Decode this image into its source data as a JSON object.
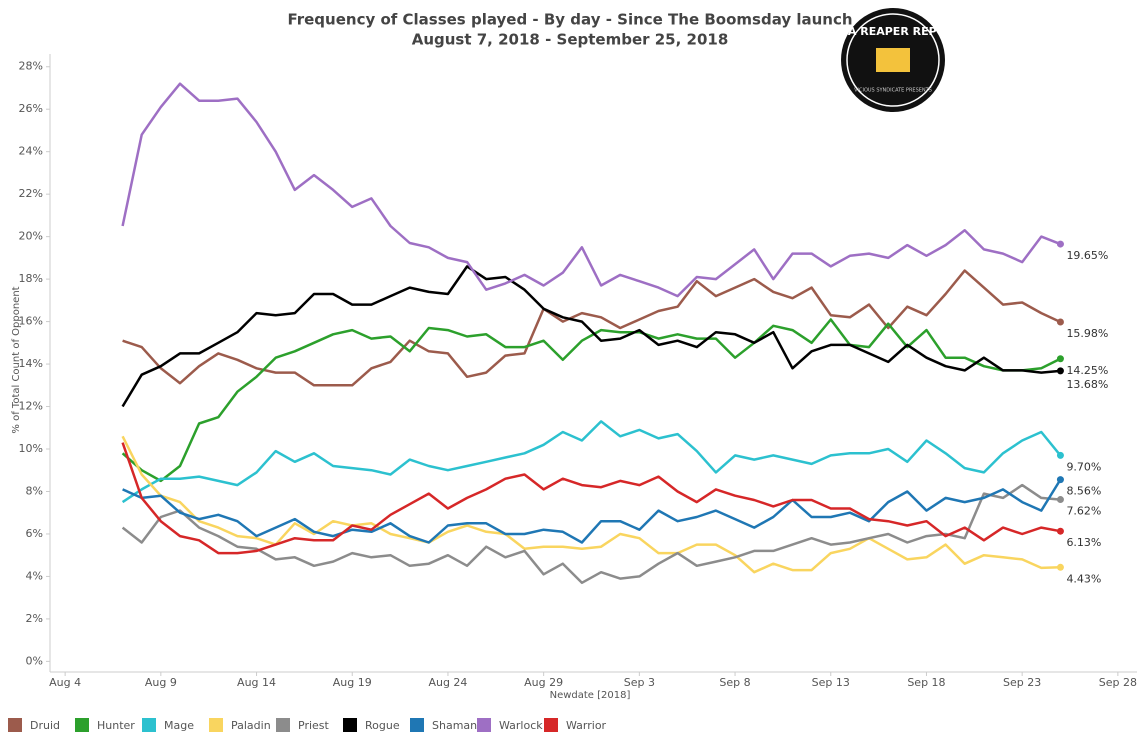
{
  "chart_data": {
    "type": "line",
    "title": "Frequency of Classes played - By day - Since The Boomsday launch",
    "subtitle": "August 7, 2018 - September 25, 2018",
    "logo": "DATA REAPER REPORT",
    "logo_sub": "VICIOUS SYNDICATE PRESENTS",
    "x_label": "Newdate [2018]",
    "y_label": "% of Total Count of Opponent",
    "x": [
      "Aug 7",
      "Aug 8",
      "Aug 9",
      "Aug 10",
      "Aug 11",
      "Aug 12",
      "Aug 13",
      "Aug 14",
      "Aug 15",
      "Aug 16",
      "Aug 17",
      "Aug 18",
      "Aug 19",
      "Aug 20",
      "Aug 21",
      "Aug 22",
      "Aug 23",
      "Aug 24",
      "Aug 25",
      "Aug 26",
      "Aug 27",
      "Aug 28",
      "Aug 29",
      "Aug 30",
      "Aug 31",
      "Sep 1",
      "Sep 2",
      "Sep 3",
      "Sep 4",
      "Sep 5",
      "Sep 6",
      "Sep 7",
      "Sep 8",
      "Sep 9",
      "Sep 10",
      "Sep 11",
      "Sep 12",
      "Sep 13",
      "Sep 14",
      "Sep 15",
      "Sep 16",
      "Sep 17",
      "Sep 18",
      "Sep 19",
      "Sep 20",
      "Sep 21",
      "Sep 22",
      "Sep 23",
      "Sep 24",
      "Sep 25"
    ],
    "xlim": [
      "Aug 3",
      "Sep 29"
    ],
    "xticks": [
      "Aug 4",
      "Aug 9",
      "Aug 14",
      "Aug 19",
      "Aug 24",
      "Aug 29",
      "Sep 3",
      "Sep 8",
      "Sep 13",
      "Sep 18",
      "Sep 23",
      "Sep 28"
    ],
    "ylim": [
      -0.5,
      28.6
    ],
    "yticks": [
      {
        "value": 0,
        "label": "0%"
      },
      {
        "value": 2,
        "label": "2%"
      },
      {
        "value": 4,
        "label": "4%"
      },
      {
        "value": 6,
        "label": "6%"
      },
      {
        "value": 8,
        "label": "8%"
      },
      {
        "value": 10,
        "label": "10%"
      },
      {
        "value": 12,
        "label": "12%"
      },
      {
        "value": 14,
        "label": "14%"
      },
      {
        "value": 16,
        "label": "16%"
      },
      {
        "value": 18,
        "label": "18%"
      },
      {
        "value": 20,
        "label": "20%"
      },
      {
        "value": 22,
        "label": "22%"
      },
      {
        "value": 24,
        "label": "24%"
      },
      {
        "value": 26,
        "label": "26%"
      },
      {
        "value": 28,
        "label": "28%"
      }
    ],
    "grid": false,
    "legend": "bottom",
    "series": [
      {
        "name": "Druid",
        "color": "#9c5b4c",
        "values": [
          15.1,
          14.8,
          13.8,
          13.1,
          13.9,
          14.5,
          14.2,
          13.8,
          13.6,
          13.6,
          13.0,
          13.0,
          13.0,
          13.8,
          14.1,
          15.1,
          14.6,
          14.5,
          13.4,
          13.6,
          14.4,
          14.5,
          16.6,
          16.0,
          16.4,
          16.2,
          15.7,
          16.1,
          16.5,
          16.7,
          17.9,
          17.2,
          17.6,
          18.0,
          17.4,
          17.1,
          17.6,
          16.3,
          16.2,
          16.8,
          15.7,
          16.7,
          16.3,
          17.3,
          18.4,
          17.6,
          16.8,
          16.9,
          16.4,
          15.98
        ],
        "value_labels": [
          null,
          null,
          null,
          null,
          null,
          null,
          null,
          null,
          null,
          null,
          null,
          null,
          null,
          null,
          null,
          null,
          null,
          null,
          null,
          null,
          null,
          null,
          null,
          null,
          null,
          null,
          null,
          null,
          null,
          null,
          null,
          null,
          null,
          null,
          null,
          null,
          null,
          null,
          null,
          null,
          null,
          null,
          null,
          null,
          null,
          null,
          null,
          null,
          null,
          "15.98%"
        ]
      },
      {
        "name": "Hunter",
        "color": "#2ca02c",
        "values": [
          9.8,
          9.0,
          8.5,
          9.2,
          11.2,
          11.5,
          12.7,
          13.4,
          14.3,
          14.6,
          15.0,
          15.4,
          15.6,
          15.2,
          15.3,
          14.6,
          15.7,
          15.6,
          15.3,
          15.4,
          14.8,
          14.8,
          15.1,
          14.2,
          15.1,
          15.6,
          15.5,
          15.5,
          15.2,
          15.4,
          15.2,
          15.2,
          14.3,
          15.0,
          15.8,
          15.6,
          15.0,
          16.1,
          14.9,
          14.8,
          15.9,
          14.8,
          15.6,
          14.3,
          14.3,
          13.9,
          13.7,
          13.7,
          13.8,
          14.25
        ],
        "value_labels": [
          null,
          null,
          null,
          null,
          null,
          null,
          null,
          null,
          null,
          null,
          null,
          null,
          null,
          null,
          null,
          null,
          null,
          null,
          null,
          null,
          null,
          null,
          null,
          null,
          null,
          null,
          null,
          null,
          null,
          null,
          null,
          null,
          null,
          null,
          null,
          null,
          null,
          null,
          null,
          null,
          null,
          null,
          null,
          null,
          null,
          null,
          null,
          null,
          null,
          "14.25%"
        ]
      },
      {
        "name": "Mage",
        "color": "#2cc1cf",
        "values": [
          7.5,
          8.1,
          8.6,
          8.6,
          8.7,
          8.5,
          8.3,
          8.9,
          9.9,
          9.4,
          9.8,
          9.2,
          9.1,
          9.0,
          8.8,
          9.5,
          9.2,
          9.0,
          9.2,
          9.4,
          9.6,
          9.8,
          10.2,
          10.8,
          10.4,
          11.3,
          10.6,
          10.9,
          10.5,
          10.7,
          9.9,
          8.9,
          9.7,
          9.5,
          9.7,
          9.5,
          9.3,
          9.7,
          9.8,
          9.8,
          10.0,
          9.4,
          10.4,
          9.8,
          9.1,
          8.9,
          9.8,
          10.4,
          10.8,
          9.7
        ],
        "value_labels": [
          null,
          null,
          null,
          null,
          null,
          null,
          null,
          null,
          null,
          null,
          null,
          null,
          null,
          null,
          null,
          null,
          null,
          null,
          null,
          null,
          null,
          null,
          null,
          null,
          null,
          null,
          null,
          null,
          null,
          null,
          null,
          null,
          null,
          null,
          null,
          null,
          null,
          null,
          null,
          null,
          null,
          null,
          null,
          null,
          null,
          null,
          null,
          null,
          null,
          "9.70%"
        ]
      },
      {
        "name": "Paladin",
        "color": "#f9d55f",
        "values": [
          10.6,
          8.8,
          7.8,
          7.5,
          6.6,
          6.3,
          5.9,
          5.8,
          5.5,
          6.5,
          6.0,
          6.6,
          6.4,
          6.5,
          6.0,
          5.8,
          5.6,
          6.1,
          6.4,
          6.1,
          6.0,
          5.3,
          5.4,
          5.4,
          5.3,
          5.4,
          6.0,
          5.8,
          5.1,
          5.1,
          5.5,
          5.5,
          5.0,
          4.2,
          4.6,
          4.3,
          4.3,
          5.1,
          5.3,
          5.8,
          5.3,
          4.8,
          4.9,
          5.5,
          4.6,
          5.0,
          4.9,
          4.8,
          4.4,
          4.43
        ],
        "value_labels": [
          null,
          null,
          null,
          null,
          null,
          null,
          null,
          null,
          null,
          null,
          null,
          null,
          null,
          null,
          null,
          null,
          null,
          null,
          null,
          null,
          null,
          null,
          null,
          null,
          null,
          null,
          null,
          null,
          null,
          null,
          null,
          null,
          null,
          null,
          null,
          null,
          null,
          null,
          null,
          null,
          null,
          null,
          null,
          null,
          null,
          null,
          null,
          null,
          null,
          "4.43%"
        ]
      },
      {
        "name": "Priest",
        "color": "#8c8c8c",
        "values": [
          6.3,
          5.6,
          6.8,
          7.1,
          6.3,
          5.9,
          5.4,
          5.3,
          4.8,
          4.9,
          4.5,
          4.7,
          5.1,
          4.9,
          5.0,
          4.5,
          4.6,
          5.0,
          4.5,
          5.4,
          4.9,
          5.2,
          4.1,
          4.6,
          3.7,
          4.2,
          3.9,
          4.0,
          4.6,
          5.1,
          4.5,
          4.7,
          4.9,
          5.2,
          5.2,
          5.5,
          5.8,
          5.5,
          5.6,
          5.8,
          6.0,
          5.6,
          5.9,
          6.0,
          5.8,
          7.9,
          7.7,
          8.3,
          7.7,
          7.62
        ],
        "value_labels": [
          null,
          null,
          null,
          null,
          null,
          null,
          null,
          null,
          null,
          null,
          null,
          null,
          null,
          null,
          null,
          null,
          null,
          null,
          null,
          null,
          null,
          null,
          null,
          null,
          null,
          null,
          null,
          null,
          null,
          null,
          null,
          null,
          null,
          null,
          null,
          null,
          null,
          null,
          null,
          null,
          null,
          null,
          null,
          null,
          null,
          null,
          null,
          null,
          null,
          "7.62%"
        ]
      },
      {
        "name": "Rogue",
        "color": "#000000",
        "values": [
          12.0,
          13.5,
          13.9,
          14.5,
          14.5,
          15.0,
          15.5,
          16.4,
          16.3,
          16.4,
          17.3,
          17.3,
          16.8,
          16.8,
          17.2,
          17.6,
          17.4,
          17.3,
          18.6,
          18.0,
          18.1,
          17.5,
          16.6,
          16.2,
          16.0,
          15.1,
          15.2,
          15.6,
          14.9,
          15.1,
          14.8,
          15.5,
          15.4,
          15.0,
          15.5,
          13.8,
          14.6,
          14.9,
          14.9,
          14.5,
          14.1,
          14.9,
          14.3,
          13.9,
          13.7,
          14.3,
          13.7,
          13.7,
          13.6,
          13.68
        ],
        "value_labels": [
          null,
          null,
          null,
          null,
          null,
          null,
          null,
          null,
          null,
          null,
          null,
          null,
          null,
          null,
          null,
          null,
          null,
          null,
          null,
          null,
          null,
          null,
          null,
          null,
          null,
          null,
          null,
          null,
          null,
          null,
          null,
          null,
          null,
          null,
          null,
          null,
          null,
          null,
          null,
          null,
          null,
          null,
          null,
          null,
          null,
          null,
          null,
          null,
          null,
          "13.68%"
        ]
      },
      {
        "name": "Shaman",
        "color": "#1f77b4",
        "values": [
          8.1,
          7.7,
          7.8,
          7.0,
          6.7,
          6.9,
          6.6,
          5.9,
          6.3,
          6.7,
          6.1,
          5.9,
          6.2,
          6.1,
          6.5,
          5.9,
          5.6,
          6.4,
          6.5,
          6.5,
          6.0,
          6.0,
          6.2,
          6.1,
          5.6,
          6.6,
          6.6,
          6.2,
          7.1,
          6.6,
          6.8,
          7.1,
          6.7,
          6.3,
          6.8,
          7.6,
          6.8,
          6.8,
          7.0,
          6.6,
          7.5,
          8.0,
          7.1,
          7.7,
          7.5,
          7.7,
          8.1,
          7.5,
          7.1,
          8.56
        ],
        "value_labels": [
          null,
          null,
          null,
          null,
          null,
          null,
          null,
          null,
          null,
          null,
          null,
          null,
          null,
          null,
          null,
          null,
          null,
          null,
          null,
          null,
          null,
          null,
          null,
          null,
          null,
          null,
          null,
          null,
          null,
          null,
          null,
          null,
          null,
          null,
          null,
          null,
          null,
          null,
          null,
          null,
          null,
          null,
          null,
          null,
          null,
          null,
          null,
          null,
          null,
          "8.56%"
        ]
      },
      {
        "name": "Warlock",
        "color": "#9e6fc4",
        "values": [
          20.5,
          24.8,
          26.1,
          27.2,
          26.4,
          26.4,
          26.5,
          25.4,
          24.0,
          22.2,
          22.9,
          22.2,
          21.4,
          21.8,
          20.5,
          19.7,
          19.5,
          19.0,
          18.8,
          17.5,
          17.8,
          18.2,
          17.7,
          18.3,
          19.5,
          17.7,
          18.2,
          17.9,
          17.6,
          17.2,
          18.1,
          18.0,
          18.7,
          19.4,
          18.0,
          19.2,
          19.2,
          18.6,
          19.1,
          19.2,
          19.0,
          19.6,
          19.1,
          19.6,
          20.3,
          19.4,
          19.2,
          18.8,
          20.0,
          19.65
        ],
        "value_labels": [
          null,
          null,
          null,
          null,
          null,
          null,
          null,
          null,
          null,
          null,
          null,
          null,
          null,
          null,
          null,
          null,
          null,
          null,
          null,
          null,
          null,
          null,
          null,
          null,
          null,
          null,
          null,
          null,
          null,
          null,
          null,
          null,
          null,
          null,
          null,
          null,
          null,
          null,
          null,
          null,
          null,
          null,
          null,
          null,
          null,
          null,
          null,
          null,
          null,
          "19.65%"
        ]
      },
      {
        "name": "Warrior",
        "color": "#d62728",
        "values": [
          10.3,
          7.7,
          6.6,
          5.9,
          5.7,
          5.1,
          5.1,
          5.2,
          5.5,
          5.8,
          5.7,
          5.7,
          6.4,
          6.2,
          6.9,
          7.4,
          7.9,
          7.2,
          7.7,
          8.1,
          8.6,
          8.8,
          8.1,
          8.6,
          8.3,
          8.2,
          8.5,
          8.3,
          8.7,
          8.0,
          7.5,
          8.1,
          7.8,
          7.6,
          7.3,
          7.6,
          7.6,
          7.2,
          7.2,
          6.7,
          6.6,
          6.4,
          6.6,
          5.9,
          6.3,
          5.7,
          6.3,
          6.0,
          6.3,
          6.13
        ],
        "value_labels": [
          null,
          null,
          null,
          null,
          null,
          null,
          null,
          null,
          null,
          null,
          null,
          null,
          null,
          null,
          null,
          null,
          null,
          null,
          null,
          null,
          null,
          null,
          null,
          null,
          null,
          null,
          null,
          null,
          null,
          null,
          null,
          null,
          null,
          null,
          null,
          null,
          null,
          null,
          null,
          null,
          null,
          null,
          null,
          null,
          null,
          null,
          null,
          null,
          null,
          "6.13%"
        ]
      }
    ]
  }
}
